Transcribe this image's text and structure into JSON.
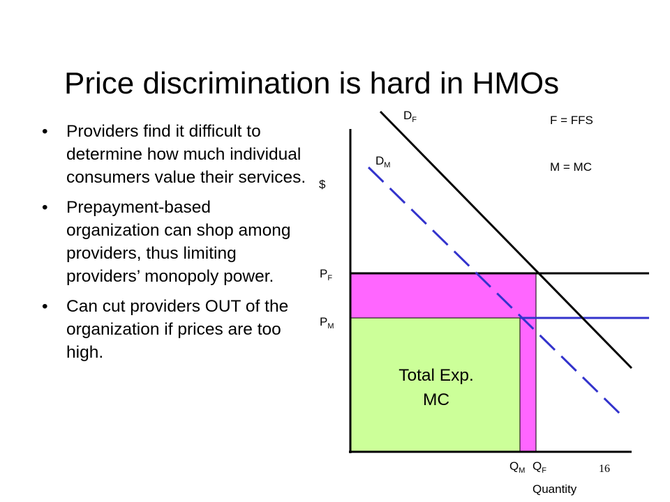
{
  "slide": {
    "title": "Price discrimination is hard in HMOs",
    "bullets": [
      "Providers find it difficult to determine how much individual consumers value their services.",
      "Prepayment-based organization can shop among providers, thus limiting providers’ monopoly power.",
      "Can cut providers OUT of the organization if prices are too high."
    ],
    "bullet_glyph": "•",
    "slide_number": "16"
  },
  "diagram": {
    "y_axis_label": "$",
    "x_axis_label": "Quantity",
    "legend": {
      "f": "F = FFS",
      "m": "M = MC"
    },
    "curves": {
      "df": {
        "main": "D",
        "sub": "F"
      },
      "dm": {
        "main": "D",
        "sub": "M"
      }
    },
    "price_labels": {
      "pf": {
        "main": "P",
        "sub": "F"
      },
      "pm": {
        "main": "P",
        "sub": "M"
      }
    },
    "quantity_labels": {
      "qm": {
        "main": "Q",
        "sub": "M"
      },
      "qf": {
        "main": "Q",
        "sub": "F"
      }
    },
    "total_exp_label": [
      "Total Exp.",
      "MC"
    ],
    "colors": {
      "green_area": "#ccff99",
      "pink_area": "#ff66ff",
      "ffs_line": "#000000",
      "mc_line": "#3333cc"
    }
  }
}
